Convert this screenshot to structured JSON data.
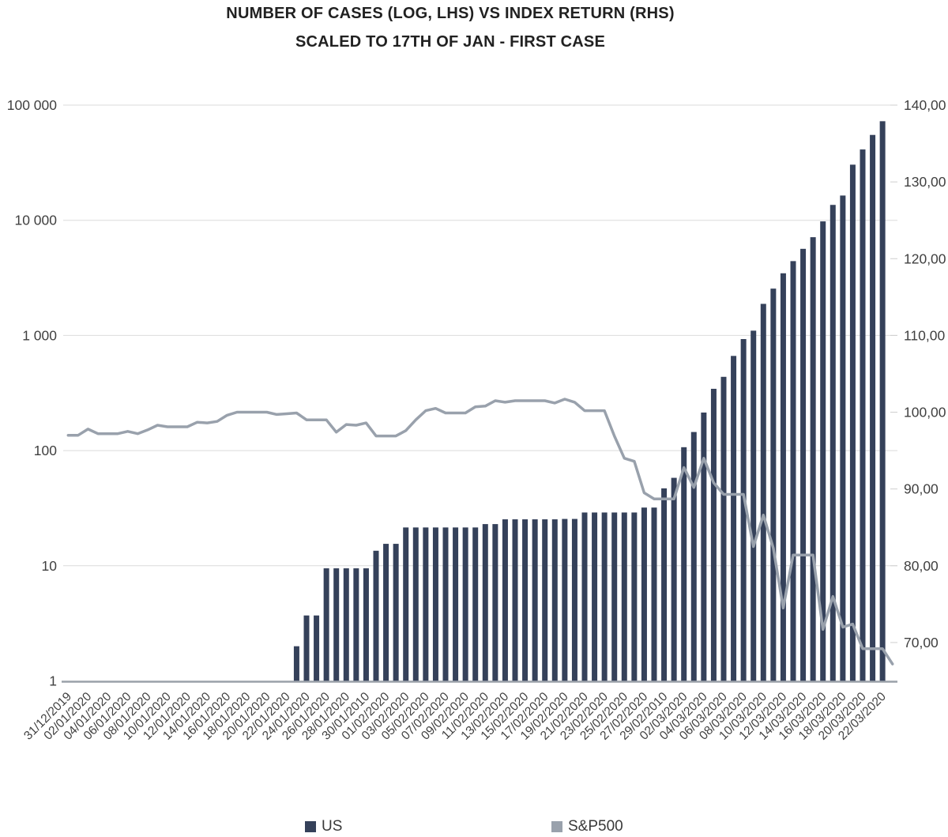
{
  "title_line1": "NUMBER OF CASES (LOG, LHS) VS INDEX RETURN (RHS)",
  "title_line2": "SCALED TO 17TH OF JAN - FIRST CASE",
  "legend": {
    "us_label": "US",
    "sp_label": "S&P500"
  },
  "colors": {
    "bar": "#35415A",
    "line": "#99A1AC",
    "grid": "#DBDBDB",
    "axis_line": "#9AA1A9",
    "label_text": "#404040",
    "title_text": "#212121",
    "background": "#FFFFFF"
  },
  "chart_data": {
    "type": "bar",
    "subtype": "combo bar (log left axis) + line (linear right axis)",
    "title": "NUMBER OF CASES (LOG, LHS) VS INDEX RETURN (RHS)",
    "subtitle": "SCALED TO 17TH OF JAN - FIRST CASE",
    "grid": "horizontal gridlines at left-axis decades only",
    "legend_position": "bottom",
    "x_axis": {
      "total_slots": 84,
      "label_step_days": 2,
      "labels": [
        "31/12/2019",
        "02/01/2020",
        "04/01/2020",
        "06/01/2020",
        "08/01/2020",
        "10/01/2020",
        "12/01/2020",
        "14/01/2020",
        "16/01/2020",
        "18/01/2020",
        "20/01/2020",
        "22/01/2020",
        "24/01/2020",
        "26/01/2020",
        "28/01/2020",
        "30/01/2010",
        "01/02/2020",
        "03/02/2020",
        "05/02/2020",
        "07/02/2020",
        "09/02/2020",
        "11/02/2020",
        "13/02/2020",
        "15/02/2020",
        "17/02/2020",
        "19/02/2020",
        "21/02/2020",
        "23/02/2020",
        "25/02/2020",
        "27/02/2020",
        "29/02/2010",
        "02/03/2020",
        "04/03/2020",
        "06/03/2020",
        "08/03/2020",
        "10/03/2020",
        "12/03/2020",
        "14/03/2020",
        "16/03/2020",
        "18/03/2020",
        "20/03/2020",
        "22/03/2020"
      ]
    },
    "left_axis": {
      "scale": "log",
      "range": [
        1,
        100000
      ],
      "tick_labels": [
        "100 000",
        "10 000",
        "1 000",
        "100",
        "10",
        "1"
      ],
      "tick_values": [
        100000,
        10000,
        1000,
        100,
        10,
        1
      ]
    },
    "right_axis": {
      "scale": "linear",
      "range": [
        65,
        140
      ],
      "tick_labels": [
        "140,00",
        "130,00",
        "120,00",
        "110,00",
        "100,00",
        "90,00",
        "80,00",
        "70,00"
      ],
      "tick_values": [
        140,
        130,
        120,
        110,
        100,
        90,
        80,
        70
      ]
    },
    "series": [
      {
        "name": "US",
        "type": "bar",
        "axis": "left",
        "color": "#35415A",
        "first_slot": 23,
        "first_date": "23/01/2020",
        "values": [
          2,
          3.7,
          3.7,
          9.5,
          9.5,
          9.5,
          9.5,
          9.5,
          13.5,
          15.5,
          15.5,
          21.5,
          21.5,
          21.5,
          21.5,
          21.5,
          21.5,
          21.5,
          21.5,
          23,
          23,
          25.3,
          25.3,
          25.3,
          25.3,
          25.3,
          25.3,
          25.5,
          25.5,
          29,
          29,
          29,
          29,
          29,
          29,
          32,
          32,
          47,
          58,
          107,
          145,
          214,
          344,
          437,
          664,
          930,
          1100,
          1880,
          2550,
          3465,
          4420,
          5650,
          7130,
          9780,
          13600,
          16400,
          30400,
          41200,
          55100,
          72500
        ]
      },
      {
        "name": "S&P500",
        "type": "line",
        "axis": "right",
        "color": "#99A1AC",
        "first_slot": 0,
        "first_date": "31/12/2019",
        "values": [
          97.0,
          97.0,
          97.8,
          97.2,
          97.2,
          97.2,
          97.5,
          97.2,
          97.7,
          98.3,
          98.1,
          98.1,
          98.1,
          98.7,
          98.6,
          98.8,
          99.6,
          100.0,
          100.0,
          100.0,
          100.0,
          99.7,
          99.8,
          99.9,
          99.0,
          99.0,
          99.0,
          97.4,
          98.4,
          98.3,
          98.6,
          96.9,
          96.9,
          96.9,
          97.6,
          99.0,
          100.2,
          100.5,
          99.9,
          99.9,
          99.9,
          100.7,
          100.8,
          101.5,
          101.3,
          101.5,
          101.5,
          101.5,
          101.5,
          101.2,
          101.7,
          101.3,
          100.2,
          100.2,
          100.2,
          96.9,
          94.0,
          93.6,
          89.5,
          88.7,
          88.7,
          88.7,
          92.8,
          90.2,
          94.0,
          90.8,
          89.3,
          89.3,
          89.3,
          82.5,
          86.6,
          82.3,
          74.5,
          81.4,
          81.4,
          81.4,
          71.7,
          76.0,
          72.0,
          72.4,
          69.2,
          69.2,
          69.2,
          67.2
        ]
      }
    ]
  }
}
